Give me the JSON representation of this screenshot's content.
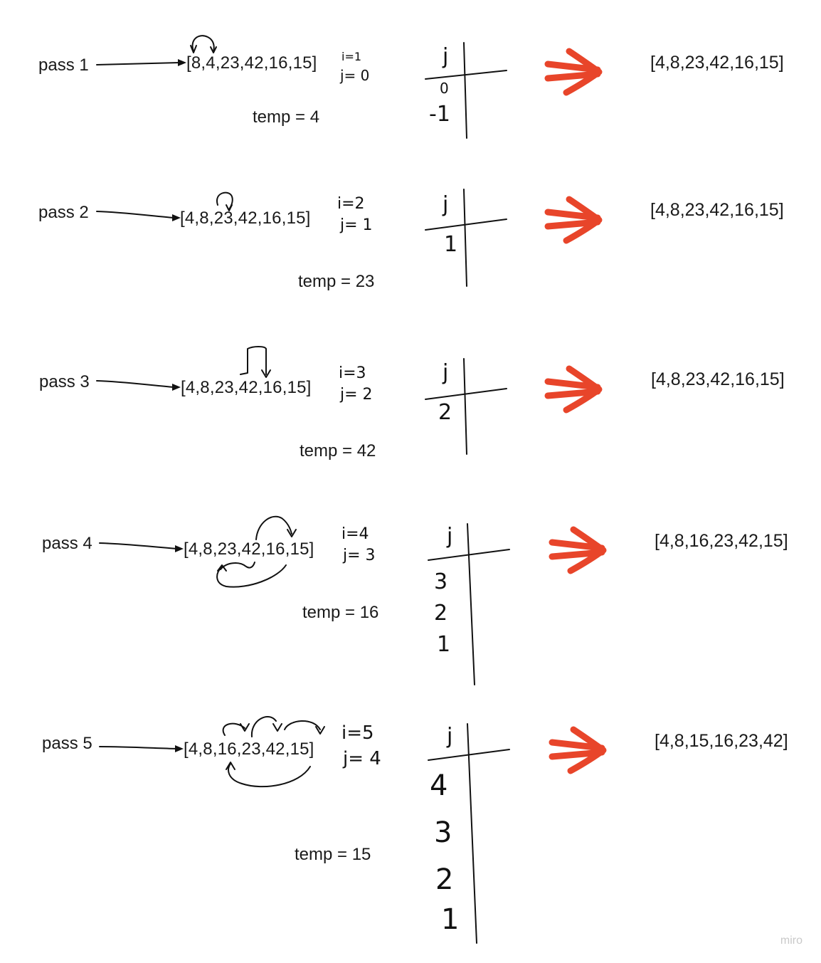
{
  "passes": [
    {
      "label": "pass 1",
      "array": "[8,4,23,42,16,15]",
      "i": "i=1",
      "j": "j= 0",
      "temp": "temp = 4",
      "j_header": "j",
      "j_values": [
        "0",
        "-1"
      ],
      "result": "[4,8,23,42,16,15]"
    },
    {
      "label": "pass 2",
      "array": "[4,8,23,42,16,15]",
      "i": "i=2",
      "j": "j= 1",
      "temp": "temp = 23",
      "j_header": "j",
      "j_values": [
        "1"
      ],
      "result": "[4,8,23,42,16,15]"
    },
    {
      "label": "pass 3",
      "array": "[4,8,23,42,16,15]",
      "i": "i=3",
      "j": "j= 2",
      "temp": "temp = 42",
      "j_header": "j",
      "j_values": [
        "2"
      ],
      "result": "[4,8,23,42,16,15]"
    },
    {
      "label": "pass 4",
      "array": "[4,8,23,42,16,15]",
      "i": "i=4",
      "j": "j= 3",
      "temp": "temp = 16",
      "j_header": "j",
      "j_values": [
        "3",
        "2",
        "1"
      ],
      "result": "[4,8,16,23,42,15]"
    },
    {
      "label": "pass 5",
      "array": "[4,8,16,23,42,15]",
      "i": "i=5",
      "j": "j= 4",
      "temp": "temp = 15",
      "j_header": "j",
      "j_values": [
        "4",
        "3",
        "2",
        "1"
      ],
      "result": "[4,8,15,16,23,42]"
    }
  ],
  "watermark": "miro",
  "colors": {
    "ink": "#111111",
    "arrow": "#e8452a",
    "watermark": "#c9c9c9"
  }
}
